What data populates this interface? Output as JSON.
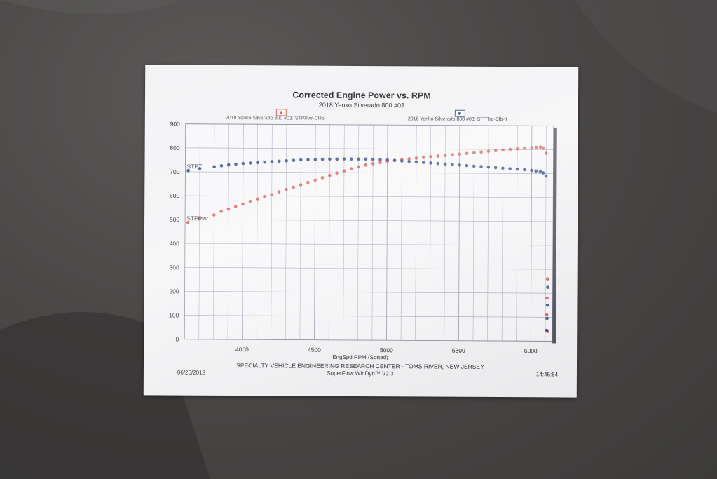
{
  "chart_data": {
    "type": "scatter",
    "title": "Corrected Engine Power vs. RPM",
    "subtitle": "2018 Yenko Silverado 800 #03",
    "xlabel": "EngSpd  RPM   (Sorted)",
    "ylabel": "",
    "xlim": [
      3600,
      6150
    ],
    "ylim": [
      0,
      900
    ],
    "x_ticks": [
      "4000",
      "4500",
      "5000",
      "5500",
      "6000"
    ],
    "y_ticks": [
      "0",
      "100",
      "200",
      "300",
      "400",
      "500",
      "600",
      "700",
      "800",
      "900"
    ],
    "grid": true,
    "legend_position": "top",
    "series": [
      {
        "name": "2018 Yenko Silverado 800 #03: STPPwr-CHp",
        "label": "STPPwr",
        "color": "#d7514c",
        "x": [
          3620,
          3700,
          3800,
          3850,
          3900,
          3950,
          4000,
          4050,
          4100,
          4150,
          4200,
          4250,
          4300,
          4350,
          4400,
          4450,
          4500,
          4550,
          4600,
          4650,
          4700,
          4750,
          4800,
          4850,
          4900,
          4950,
          5000,
          5050,
          5100,
          5150,
          5200,
          5250,
          5300,
          5350,
          5400,
          5450,
          5500,
          5550,
          5600,
          5650,
          5700,
          5750,
          5800,
          5850,
          5900,
          5950,
          6000,
          6030,
          6060,
          6080,
          6100,
          6110,
          6112,
          6114,
          6116
        ],
        "y": [
          488,
          505,
          520,
          535,
          545,
          556,
          566,
          578,
          588,
          598,
          606,
          618,
          628,
          638,
          648,
          658,
          668,
          678,
          688,
          698,
          707,
          716,
          724,
          732,
          738,
          743,
          748,
          752,
          756,
          759,
          762,
          765,
          768,
          771,
          774,
          777,
          780,
          783,
          786,
          789,
          792,
          795,
          798,
          801,
          803,
          806,
          808,
          810,
          811,
          807,
          785,
          110,
          180,
          260,
          40
        ]
      },
      {
        "name": "2018 Yenko Silverado 800 #03: STPTrq-Clb-ft",
        "label": "STPT",
        "color": "#2a3f8a",
        "x": [
          3620,
          3700,
          3800,
          3850,
          3900,
          3950,
          4000,
          4050,
          4100,
          4150,
          4200,
          4250,
          4300,
          4350,
          4400,
          4450,
          4500,
          4550,
          4600,
          4650,
          4700,
          4750,
          4800,
          4850,
          4900,
          4950,
          5000,
          5050,
          5100,
          5150,
          5200,
          5250,
          5300,
          5350,
          5400,
          5450,
          5500,
          5550,
          5600,
          5650,
          5700,
          5750,
          5800,
          5850,
          5900,
          5950,
          6000,
          6030,
          6060,
          6080,
          6100,
          6110,
          6112,
          6114,
          6116
        ],
        "y": [
          705,
          714,
          722,
          726,
          730,
          733,
          736,
          738,
          740,
          742,
          744,
          746,
          748,
          750,
          752,
          753,
          754,
          755,
          756,
          756,
          757,
          757,
          757,
          757,
          756,
          755,
          754,
          752,
          750,
          748,
          746,
          744,
          742,
          740,
          738,
          736,
          734,
          732,
          730,
          728,
          726,
          724,
          722,
          720,
          718,
          716,
          713,
          711,
          708,
          703,
          690,
          45,
          95,
          150,
          225
        ]
      }
    ]
  },
  "footer": {
    "org": "SPECIALTY VEHICLE ENGINEERING RESEARCH CENTER - TOMS RIVER, NEW JERSEY",
    "software": "SuperFlow WinDyn™ V2.3",
    "date": "06/25/2018",
    "time": "14:46:54"
  }
}
